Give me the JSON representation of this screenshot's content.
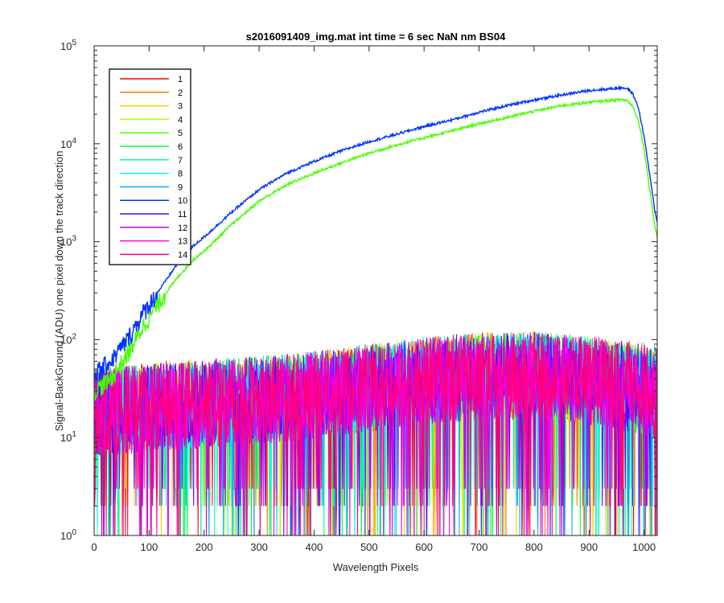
{
  "chart_data": {
    "type": "line",
    "title": "s2016091409_img.mat int time = 6 sec  NaN nm BS04",
    "xlabel": "Wavelength Pixels",
    "ylabel": "Signal-BackGround (ADU) one pixel down the track direction",
    "xlim": [
      0,
      1024
    ],
    "ylim": [
      1,
      100000
    ],
    "yscale": "log",
    "xticks": [
      0,
      100,
      200,
      300,
      400,
      500,
      600,
      700,
      800,
      900,
      1000
    ],
    "yticks": [
      {
        "value": 1,
        "base": "10",
        "exp": "0"
      },
      {
        "value": 10,
        "base": "10",
        "exp": "1"
      },
      {
        "value": 100,
        "base": "10",
        "exp": "2"
      },
      {
        "value": 1000,
        "base": "10",
        "exp": "3"
      },
      {
        "value": 10000,
        "base": "10",
        "exp": "4"
      },
      {
        "value": 100000,
        "base": "10",
        "exp": "5"
      }
    ],
    "grid": false,
    "legend_position": "top-left",
    "series": [
      {
        "name": "1",
        "color": "#ff0000",
        "kind": "noise"
      },
      {
        "name": "2",
        "color": "#ff7700",
        "kind": "noise"
      },
      {
        "name": "3",
        "color": "#ffcc00",
        "kind": "noise"
      },
      {
        "name": "4",
        "color": "#b3ff00",
        "kind": "noise"
      },
      {
        "name": "5",
        "color": "#44ff00",
        "kind": "signal",
        "x": [
          0,
          30,
          60,
          90,
          120,
          150,
          180,
          210,
          250,
          300,
          350,
          400,
          450,
          500,
          550,
          600,
          650,
          700,
          750,
          800,
          850,
          900,
          930,
          950,
          960,
          970,
          980,
          990,
          1000,
          1010,
          1020,
          1024
        ],
        "y": [
          30,
          40,
          70,
          140,
          250,
          420,
          650,
          900,
          1500,
          2600,
          3800,
          5000,
          6400,
          8000,
          9700,
          11500,
          13500,
          16000,
          18500,
          21500,
          24500,
          26500,
          27500,
          28000,
          28300,
          27500,
          24000,
          17000,
          9000,
          3500,
          1400,
          1100
        ]
      },
      {
        "name": "6",
        "color": "#00ff33",
        "kind": "noise"
      },
      {
        "name": "7",
        "color": "#00ffaa",
        "kind": "noise"
      },
      {
        "name": "8",
        "color": "#00ffee",
        "kind": "noise"
      },
      {
        "name": "9",
        "color": "#00aaff",
        "kind": "noise"
      },
      {
        "name": "10",
        "color": "#0033ff",
        "kind": "signal",
        "x": [
          0,
          30,
          60,
          90,
          120,
          150,
          180,
          210,
          250,
          300,
          350,
          400,
          450,
          500,
          550,
          600,
          650,
          700,
          750,
          800,
          850,
          900,
          930,
          950,
          960,
          970,
          980,
          990,
          1000,
          1010,
          1020,
          1024
        ],
        "y": [
          45,
          60,
          100,
          190,
          330,
          580,
          900,
          1250,
          2000,
          3400,
          5000,
          6600,
          8500,
          10500,
          12500,
          15000,
          17500,
          21000,
          24500,
          28000,
          31500,
          35000,
          36000,
          37000,
          37500,
          36500,
          32000,
          23000,
          12000,
          5000,
          2000,
          1600
        ]
      },
      {
        "name": "11",
        "color": "#5500ff",
        "kind": "noise"
      },
      {
        "name": "12",
        "color": "#bb00ff",
        "kind": "noise"
      },
      {
        "name": "13",
        "color": "#ff00dd",
        "kind": "noise"
      },
      {
        "name": "14",
        "color": "#ff0077",
        "kind": "noise"
      }
    ],
    "noise_envelope": {
      "x": [
        0,
        100,
        200,
        300,
        400,
        500,
        600,
        700,
        800,
        900,
        1000,
        1024
      ],
      "median": [
        18,
        20,
        22,
        24,
        27,
        32,
        38,
        42,
        43,
        38,
        30,
        28
      ],
      "peak": [
        45,
        55,
        60,
        62,
        70,
        80,
        95,
        105,
        110,
        100,
        85,
        80
      ]
    }
  }
}
